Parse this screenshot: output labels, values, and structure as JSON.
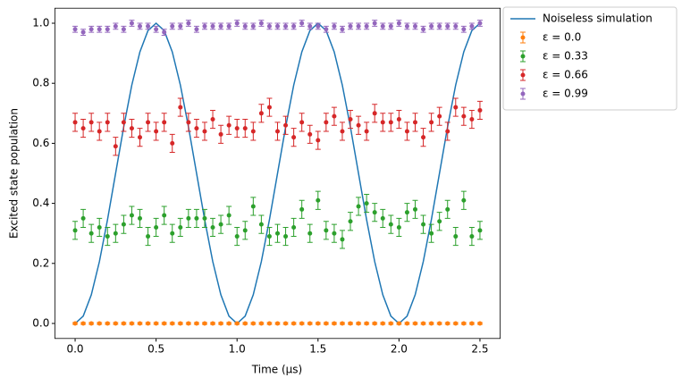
{
  "chart_data": {
    "type": "line",
    "xlabel": "Time (μs)",
    "ylabel": "Excited state population",
    "x": [
      0,
      0.05,
      0.1,
      0.15,
      0.2,
      0.25,
      0.3,
      0.35,
      0.4,
      0.45,
      0.5,
      0.55,
      0.6,
      0.65,
      0.7,
      0.75,
      0.8,
      0.85,
      0.9,
      0.95,
      1.0,
      1.05,
      1.1,
      1.15,
      1.2,
      1.25,
      1.3,
      1.35,
      1.4,
      1.45,
      1.5,
      1.55,
      1.6,
      1.65,
      1.7,
      1.75,
      1.8,
      1.85,
      1.9,
      1.95,
      2.0,
      2.05,
      2.1,
      2.15,
      2.2,
      2.25,
      2.3,
      2.35,
      2.4,
      2.45,
      2.5
    ],
    "series": [
      {
        "name": "Noiseless simulation",
        "type": "line",
        "color": "#1f77b4",
        "values": [
          0,
          0.0245,
          0.0955,
          0.2061,
          0.3455,
          0.5,
          0.6545,
          0.7939,
          0.9045,
          0.9755,
          1,
          0.9755,
          0.9045,
          0.7939,
          0.6545,
          0.5,
          0.3455,
          0.2061,
          0.0955,
          0.0245,
          0,
          0.0245,
          0.0955,
          0.2061,
          0.3455,
          0.5,
          0.6545,
          0.7939,
          0.9045,
          0.9755,
          1,
          0.9755,
          0.9045,
          0.7939,
          0.6545,
          0.5,
          0.3455,
          0.2061,
          0.0955,
          0.0245,
          0,
          0.0245,
          0.0955,
          0.2061,
          0.3455,
          0.5,
          0.6545,
          0.7939,
          0.9045,
          0.9755,
          1
        ]
      },
      {
        "name": "ε = 0.0",
        "type": "errorbar",
        "color": "#ff7f0e",
        "error": 0.003,
        "values": [
          0,
          0,
          0,
          0,
          0,
          0,
          0,
          0,
          0,
          0,
          0,
          0,
          0,
          0,
          0,
          0,
          0,
          0,
          0,
          0,
          0,
          0,
          0,
          0,
          0,
          0,
          0,
          0,
          0,
          0,
          0,
          0,
          0,
          0,
          0,
          0,
          0,
          0,
          0,
          0,
          0,
          0,
          0,
          0,
          0,
          0,
          0,
          0,
          0,
          0,
          0
        ]
      },
      {
        "name": "ε = 0.33",
        "type": "errorbar",
        "color": "#2ca02c",
        "error": 0.03,
        "values": [
          0.31,
          0.35,
          0.3,
          0.32,
          0.29,
          0.3,
          0.33,
          0.36,
          0.35,
          0.29,
          0.32,
          0.36,
          0.3,
          0.32,
          0.35,
          0.35,
          0.35,
          0.32,
          0.33,
          0.36,
          0.29,
          0.31,
          0.39,
          0.33,
          0.29,
          0.3,
          0.29,
          0.32,
          0.38,
          0.3,
          0.41,
          0.31,
          0.3,
          0.28,
          0.34,
          0.39,
          0.4,
          0.37,
          0.35,
          0.33,
          0.32,
          0.37,
          0.38,
          0.33,
          0.3,
          0.34,
          0.38,
          0.29,
          0.41,
          0.29,
          0.31
        ]
      },
      {
        "name": "ε = 0.66",
        "type": "errorbar",
        "color": "#d62728",
        "error": 0.03,
        "values": [
          0.67,
          0.65,
          0.67,
          0.64,
          0.67,
          0.59,
          0.67,
          0.65,
          0.62,
          0.67,
          0.64,
          0.67,
          0.6,
          0.72,
          0.67,
          0.65,
          0.64,
          0.68,
          0.63,
          0.66,
          0.65,
          0.65,
          0.64,
          0.7,
          0.72,
          0.64,
          0.66,
          0.62,
          0.67,
          0.63,
          0.61,
          0.67,
          0.69,
          0.64,
          0.68,
          0.66,
          0.64,
          0.7,
          0.67,
          0.67,
          0.68,
          0.64,
          0.67,
          0.62,
          0.67,
          0.69,
          0.64,
          0.72,
          0.69,
          0.68,
          0.71
        ]
      },
      {
        "name": "ε = 0.99",
        "type": "errorbar",
        "color": "#9467bd",
        "error": 0.01,
        "values": [
          0.98,
          0.97,
          0.98,
          0.98,
          0.98,
          0.99,
          0.98,
          1.0,
          0.99,
          0.99,
          0.98,
          0.97,
          0.99,
          0.99,
          1.0,
          0.98,
          0.99,
          0.99,
          0.99,
          0.99,
          1.0,
          0.99,
          0.99,
          1.0,
          0.99,
          0.99,
          0.99,
          0.99,
          1.0,
          0.99,
          0.99,
          0.98,
          0.99,
          0.98,
          0.99,
          0.99,
          0.99,
          1.0,
          0.99,
          0.99,
          1.0,
          0.99,
          0.99,
          0.98,
          0.99,
          0.99,
          0.99,
          0.99,
          0.98,
          0.99,
          1.0
        ]
      }
    ],
    "xlim": [
      -0.125,
      2.625
    ],
    "xticks": [
      {
        "value": 0,
        "label": "0.0"
      },
      {
        "value": 0.5,
        "label": "0.5"
      },
      {
        "value": 1,
        "label": "1.0"
      },
      {
        "value": 1.5,
        "label": "1.5"
      },
      {
        "value": 2,
        "label": "2.0"
      },
      {
        "value": 2.5,
        "label": "2.5"
      }
    ],
    "ylim": [
      -0.05,
      1.05
    ],
    "yticks": [
      {
        "value": 0,
        "label": "0.0"
      },
      {
        "value": 0.2,
        "label": "0.2"
      },
      {
        "value": 0.4,
        "label": "0.4"
      },
      {
        "value": 0.6,
        "label": "0.6"
      },
      {
        "value": 0.8,
        "label": "0.8"
      },
      {
        "value": 1,
        "label": "1.0"
      }
    ],
    "grid": false,
    "legend": "outside upper right"
  }
}
